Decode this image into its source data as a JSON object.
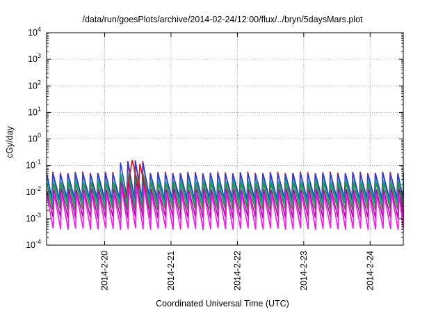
{
  "chart_data": {
    "type": "line",
    "title": "/data/run/goesPlots/archive/2014-02-24/12:00/flux/../bryn/5daysMars.plot",
    "xlabel": "Coordinated Universal Time (UTC)",
    "ylabel": "cGy/day",
    "y_scale": "log",
    "ylim": [
      0.0001,
      10000
    ],
    "xlim": [
      "2014-02-19 03:00",
      "2014-02-24 12:00"
    ],
    "x_ticks": [
      "2014-2-20",
      "2014-2-21",
      "2014-2-22",
      "2014-2-23",
      "2014-2-24"
    ],
    "y_ticks": [
      {
        "base": "10",
        "exp": "-4"
      },
      {
        "base": "10",
        "exp": "-3"
      },
      {
        "base": "10",
        "exp": "-2"
      },
      {
        "base": "10",
        "exp": "-1"
      },
      {
        "base": "10",
        "exp": "0"
      },
      {
        "base": "10",
        "exp": "1"
      },
      {
        "base": "10",
        "exp": "2"
      },
      {
        "base": "10",
        "exp": "3"
      },
      {
        "base": "10",
        "exp": "4"
      }
    ],
    "grid": true,
    "legend": "none",
    "pattern": "sawtooth with period of about 0.113 days",
    "series": [
      {
        "color": "#e01010",
        "peak": 0.055,
        "trough": 0.0045
      },
      {
        "color": "#2040e0",
        "peak": 0.05,
        "trough": 0.0055
      },
      {
        "color": "#00b0d0",
        "peak": 0.028,
        "trough": 0.0035
      },
      {
        "color": "#20a020",
        "peak": 0.022,
        "trough": 0.0022
      },
      {
        "color": "#a010a0",
        "peak": 0.013,
        "trough": 0.0011
      },
      {
        "color": "#ff10f0",
        "peak": 0.009,
        "trough": 0.0004
      }
    ],
    "events": [
      {
        "time": "2014-02-20 10:00",
        "color": "#e01010",
        "peak": 0.16
      }
    ]
  }
}
